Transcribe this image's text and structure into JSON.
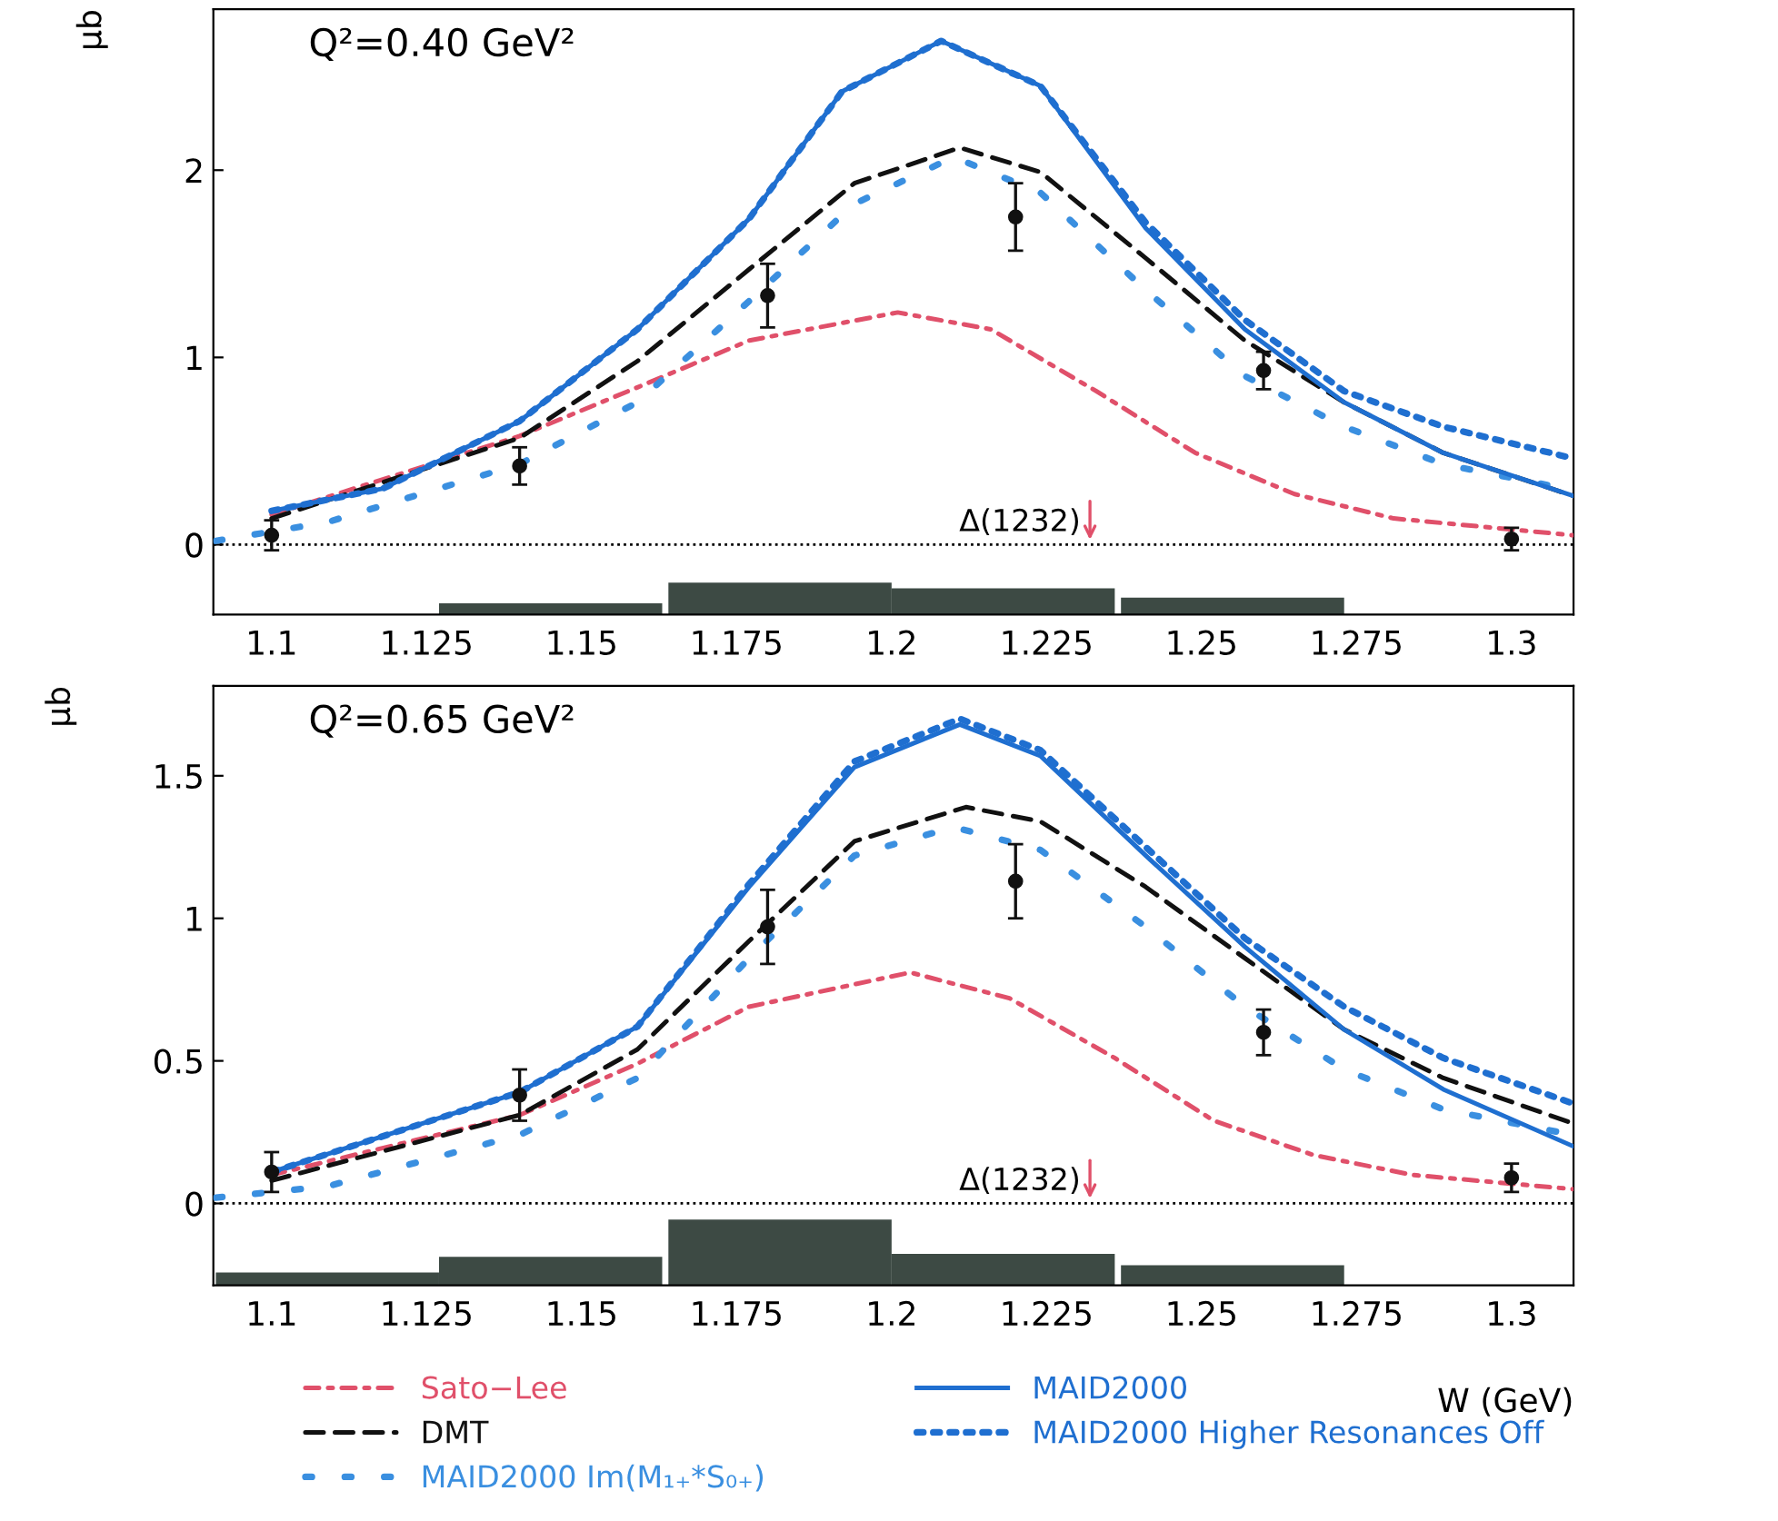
{
  "chart_data": [
    {
      "type": "line",
      "ylabel": "μb",
      "xlim": [
        1.0906,
        1.31
      ],
      "ylim": [
        -0.373,
        2.86
      ],
      "xticks": [
        1.1,
        1.125,
        1.15,
        1.175,
        1.2,
        1.225,
        1.25,
        1.275,
        1.3
      ],
      "yticks": [
        0,
        1,
        2
      ],
      "grid": false,
      "legend": false,
      "annotations": [
        "Q²=0.40 GeV²",
        {
          "text": "Δ(1232)",
          "x": 1.232,
          "y": 0
        }
      ],
      "ref_lines": [
        {
          "axis": "y",
          "value": 0,
          "color": "#000000",
          "line_style": "dotted"
        }
      ],
      "series": [
        {
          "type": "bar",
          "color": "#3d4a44",
          "x": [
            1.145,
            1.182,
            1.218,
            1.255
          ],
          "base": [
            -0.373,
            -0.373,
            -0.373,
            -0.373
          ],
          "values": [
            0.06,
            0.17,
            0.14,
            0.09
          ]
        },
        {
          "color": "#e0506a",
          "line_style": "dashdot",
          "x": [
            1.1,
            1.14,
            1.159,
            1.177,
            1.201,
            1.216,
            1.233,
            1.249,
            1.265,
            1.281,
            1.31
          ],
          "values": [
            0.16,
            0.58,
            0.84,
            1.09,
            1.24,
            1.15,
            0.82,
            0.49,
            0.27,
            0.14,
            0.05
          ]
        },
        {
          "color": "#111111",
          "line_style": "dashed",
          "x": [
            1.1,
            1.14,
            1.159,
            1.177,
            1.194,
            1.211,
            1.224,
            1.241,
            1.257,
            1.273,
            1.289,
            1.31
          ],
          "values": [
            0.14,
            0.57,
            0.98,
            1.47,
            1.93,
            2.12,
            1.99,
            1.53,
            1.09,
            0.76,
            0.49,
            0.26
          ]
        },
        {
          "color": "#3a8fe0",
          "line_style": "loosely dotted",
          "x": [
            1.091,
            1.109,
            1.14,
            1.159,
            1.177,
            1.194,
            1.21,
            1.224,
            1.241,
            1.257,
            1.273,
            1.289,
            1.31
          ],
          "values": [
            0.02,
            0.12,
            0.43,
            0.76,
            1.3,
            1.82,
            2.07,
            1.88,
            1.36,
            0.9,
            0.63,
            0.43,
            0.29
          ]
        },
        {
          "color": "#1f6fd0",
          "line_style": "solid",
          "x": [
            1.1,
            1.118,
            1.14,
            1.159,
            1.177,
            1.192,
            1.208,
            1.224,
            1.241,
            1.257,
            1.273,
            1.289,
            1.31
          ],
          "values": [
            0.18,
            0.3,
            0.66,
            1.15,
            1.74,
            2.42,
            2.69,
            2.45,
            1.69,
            1.15,
            0.76,
            0.49,
            0.26
          ]
        },
        {
          "color": "#1f6fd0",
          "line_style": "dotted",
          "x": [
            1.1,
            1.118,
            1.14,
            1.159,
            1.177,
            1.192,
            1.208,
            1.224,
            1.241,
            1.257,
            1.273,
            1.289,
            1.31
          ],
          "values": [
            0.18,
            0.3,
            0.66,
            1.15,
            1.74,
            2.42,
            2.69,
            2.45,
            1.72,
            1.2,
            0.82,
            0.63,
            0.46
          ]
        },
        {
          "type": "scatter",
          "color": "#111111",
          "marker": "circle",
          "x": [
            1.1,
            1.14,
            1.18,
            1.22,
            1.26,
            1.3
          ],
          "values": [
            0.05,
            0.42,
            1.33,
            1.75,
            0.93,
            0.03
          ],
          "errors": [
            0.08,
            0.1,
            0.17,
            0.18,
            0.1,
            0.06
          ]
        }
      ]
    },
    {
      "type": "line",
      "ylabel": "μb",
      "xlabel": "W (GeV)",
      "xlim": [
        1.0906,
        1.31
      ],
      "ylim": [
        -0.287,
        1.815
      ],
      "xticks": [
        1.1,
        1.125,
        1.15,
        1.175,
        1.2,
        1.225,
        1.25,
        1.275,
        1.3
      ],
      "yticks": [
        0,
        0.5,
        1,
        1.5
      ],
      "grid": false,
      "legend": "bottom",
      "annotations": [
        "Q²=0.65 GeV²",
        {
          "text": "Δ(1232)",
          "x": 1.232,
          "y": 0
        }
      ],
      "ref_lines": [
        {
          "axis": "y",
          "value": 0,
          "color": "#000000",
          "line_style": "dotted"
        }
      ],
      "series": [
        {
          "type": "bar",
          "color": "#3d4a44",
          "x": [
            1.109,
            1.145,
            1.182,
            1.218,
            1.255
          ],
          "base": [
            -0.287,
            -0.287,
            -0.287,
            -0.287,
            -0.287
          ],
          "values": [
            0.045,
            0.1,
            0.23,
            0.11,
            0.07
          ]
        },
        {
          "name": "Sato−Lee",
          "color": "#e0506a",
          "line_style": "dashdot",
          "x": [
            1.1,
            1.14,
            1.159,
            1.177,
            1.203,
            1.219,
            1.236,
            1.252,
            1.268,
            1.284,
            1.31
          ],
          "values": [
            0.1,
            0.31,
            0.49,
            0.69,
            0.81,
            0.72,
            0.51,
            0.29,
            0.17,
            0.1,
            0.05
          ]
        },
        {
          "name": "DMT",
          "color": "#111111",
          "line_style": "dashed",
          "x": [
            1.1,
            1.14,
            1.159,
            1.177,
            1.194,
            1.212,
            1.224,
            1.241,
            1.257,
            1.273,
            1.289,
            1.31
          ],
          "values": [
            0.08,
            0.31,
            0.54,
            0.92,
            1.27,
            1.39,
            1.34,
            1.11,
            0.86,
            0.61,
            0.44,
            0.28
          ]
        },
        {
          "name": "MAID2000 Im(M₁₊*S₀₊)",
          "color": "#3a8fe0",
          "line_style": "loosely dotted",
          "x": [
            1.091,
            1.109,
            1.14,
            1.159,
            1.177,
            1.194,
            1.21,
            1.224,
            1.241,
            1.257,
            1.273,
            1.289,
            1.31
          ],
          "values": [
            0.02,
            0.06,
            0.24,
            0.44,
            0.86,
            1.22,
            1.32,
            1.24,
            0.97,
            0.69,
            0.47,
            0.33,
            0.24
          ]
        },
        {
          "name": "MAID2000",
          "color": "#1f6fd0",
          "line_style": "solid",
          "x": [
            1.1,
            1.14,
            1.159,
            1.177,
            1.194,
            1.211,
            1.224,
            1.241,
            1.257,
            1.273,
            1.289,
            1.31
          ],
          "values": [
            0.11,
            0.39,
            0.62,
            1.11,
            1.53,
            1.68,
            1.57,
            1.22,
            0.9,
            0.61,
            0.4,
            0.2
          ]
        },
        {
          "name": "MAID2000 Higher Resonances Off",
          "color": "#1f6fd0",
          "line_style": "dotted",
          "x": [
            1.1,
            1.14,
            1.159,
            1.177,
            1.194,
            1.211,
            1.224,
            1.241,
            1.257,
            1.273,
            1.289,
            1.31
          ],
          "values": [
            0.11,
            0.39,
            0.62,
            1.12,
            1.55,
            1.7,
            1.59,
            1.25,
            0.93,
            0.69,
            0.51,
            0.35
          ]
        },
        {
          "type": "scatter",
          "color": "#111111",
          "marker": "circle",
          "x": [
            1.1,
            1.14,
            1.18,
            1.22,
            1.26,
            1.3
          ],
          "values": [
            0.11,
            0.38,
            0.97,
            1.13,
            0.6,
            0.09
          ],
          "errors": [
            0.07,
            0.09,
            0.13,
            0.13,
            0.08,
            0.05
          ]
        }
      ]
    }
  ]
}
